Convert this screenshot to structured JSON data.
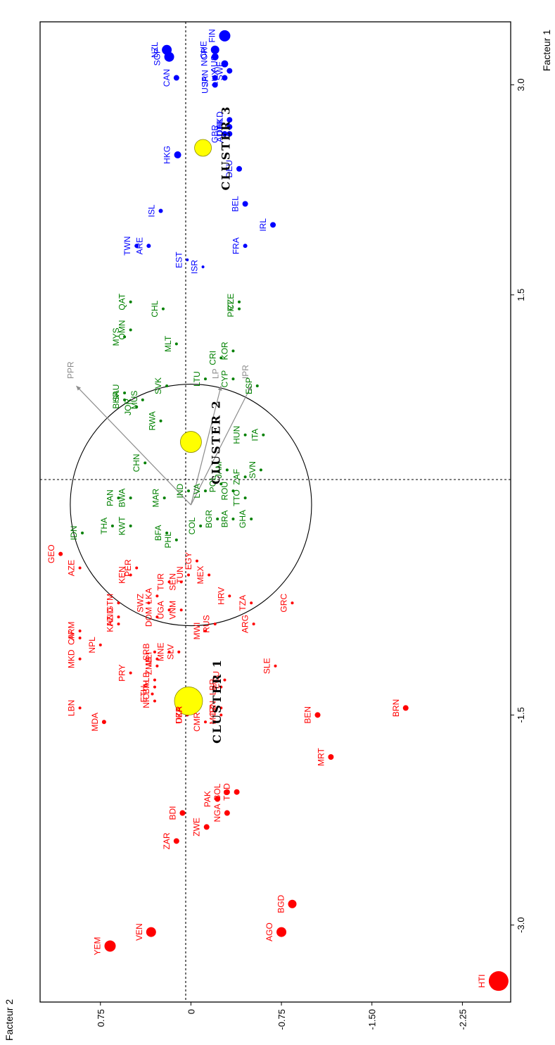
{
  "chart_data": {
    "type": "scatter",
    "xlabel": "Facteur 1",
    "ylabel": "Facteur 2",
    "xlim": [
      -3.55,
      3.45
    ],
    "ylim": [
      -2.65,
      1.25
    ],
    "x_ticks": [
      -3.0,
      -1.5,
      1.5,
      3.0
    ],
    "x_tick_labels": [
      "-3.0",
      "-1.5",
      "1.5",
      "3.0"
    ],
    "y_ticks": [
      0.75,
      0,
      -0.75,
      -1.5,
      -2.25
    ],
    "y_tick_labels": [
      "0.75",
      "0",
      "-0.75",
      "-1.50",
      "-2.25"
    ],
    "colors": {
      "cluster1": "#ff0000",
      "cluster2": "#008000",
      "cluster3": "#0000ff",
      "centroid": "#ffff00",
      "variables": "#8c8c8c"
    },
    "series": [
      {
        "name": "CLUSTER 1",
        "color": "#ff0000",
        "points": [
          {
            "label": "HTI",
            "x": -3.4,
            "y": -2.55,
            "size": 14
          },
          {
            "label": "YEM",
            "x": -3.15,
            "y": 0.67,
            "size": 8
          },
          {
            "label": "VEN",
            "x": -3.05,
            "y": 0.33,
            "size": 7
          },
          {
            "label": "AGO",
            "x": -3.05,
            "y": -0.75,
            "size": 7
          },
          {
            "label": "BGD",
            "x": -2.85,
            "y": -0.84,
            "size": 6
          },
          {
            "label": "ZAR",
            "x": -2.4,
            "y": 0.12,
            "size": 4
          },
          {
            "label": "BDI",
            "x": -2.2,
            "y": 0.07,
            "size": 4
          },
          {
            "label": "ZWE",
            "x": -2.3,
            "y": -0.13,
            "size": 4
          },
          {
            "label": "NGA",
            "x": -2.2,
            "y": -0.3,
            "size": 4
          },
          {
            "label": "PAK",
            "x": -2.1,
            "y": -0.22,
            "size": 4
          },
          {
            "label": "BOL",
            "x": -2.05,
            "y": -0.3,
            "size": 4
          },
          {
            "label": "TCD",
            "x": -2.05,
            "y": -0.38,
            "size": 4
          },
          {
            "label": "MRT",
            "x": -1.8,
            "y": -1.16,
            "size": 4
          },
          {
            "label": "BEN",
            "x": -1.5,
            "y": -1.05,
            "size": 4
          },
          {
            "label": "BRN",
            "x": -1.45,
            "y": -1.78,
            "size": 4
          },
          {
            "label": "MDA",
            "x": -1.55,
            "y": 0.72,
            "size": 3
          },
          {
            "label": "DZA",
            "x": -1.5,
            "y": 0.03,
            "size": 2
          },
          {
            "label": "UKR",
            "x": -1.5,
            "y": 0.03,
            "size": 2
          },
          {
            "label": "CMR",
            "x": -1.55,
            "y": -0.12,
            "size": 2
          },
          {
            "label": "MOZ",
            "x": -1.5,
            "y": -0.25,
            "size": 2
          },
          {
            "label": "IRN",
            "x": -1.45,
            "y": -0.25,
            "size": 2
          },
          {
            "label": "LBN",
            "x": -1.45,
            "y": 0.92,
            "size": 2
          },
          {
            "label": "NIC",
            "x": -1.4,
            "y": 0.3,
            "size": 2
          },
          {
            "label": "ETH",
            "x": -1.35,
            "y": 0.32,
            "size": 2
          },
          {
            "label": "BIH",
            "x": -1.3,
            "y": 0.3,
            "size": 2
          },
          {
            "label": "ALB",
            "x": -1.25,
            "y": 0.3,
            "size": 2
          },
          {
            "label": "MKD",
            "x": -1.1,
            "y": 0.92,
            "size": 2
          },
          {
            "label": "PRY",
            "x": -1.2,
            "y": 0.5,
            "size": 2
          },
          {
            "label": "ZMB",
            "x": -1.15,
            "y": 0.28,
            "size": 2
          },
          {
            "label": "MLI",
            "x": -1.1,
            "y": 0.28,
            "size": 2
          },
          {
            "label": "LBR",
            "x": -1.3,
            "y": -0.25,
            "size": 2
          },
          {
            "label": "ECU",
            "x": -1.25,
            "y": -0.28,
            "size": 2
          },
          {
            "label": "SLE",
            "x": -1.15,
            "y": -0.7,
            "size": 2
          },
          {
            "label": "SRB",
            "x": -1.05,
            "y": 0.3,
            "size": 2
          },
          {
            "label": "MNE",
            "x": -1.05,
            "y": 0.18,
            "size": 2
          },
          {
            "label": "SLV",
            "x": -1.05,
            "y": 0.1,
            "size": 2
          },
          {
            "label": "NPL",
            "x": -1.0,
            "y": 0.75,
            "size": 2
          },
          {
            "label": "CIV",
            "x": -0.95,
            "y": 0.92,
            "size": 2
          },
          {
            "label": "ARM",
            "x": -0.9,
            "y": 0.92,
            "size": 2
          },
          {
            "label": "KAZ",
            "x": -0.85,
            "y": 0.6,
            "size": 2
          },
          {
            "label": "HND",
            "x": -0.8,
            "y": 0.6,
            "size": 2
          },
          {
            "label": "DOM",
            "x": -0.8,
            "y": 0.28,
            "size": 2
          },
          {
            "label": "UGA",
            "x": -0.75,
            "y": 0.18,
            "size": 2
          },
          {
            "label": "VNM",
            "x": -0.75,
            "y": 0.08,
            "size": 2
          },
          {
            "label": "MWI",
            "x": -0.9,
            "y": -0.12,
            "size": 2
          },
          {
            "label": "RUS",
            "x": -0.85,
            "y": -0.2,
            "size": 2
          },
          {
            "label": "ARG",
            "x": -0.85,
            "y": -0.52,
            "size": 2
          },
          {
            "label": "SWZ",
            "x": -0.7,
            "y": 0.35,
            "size": 2
          },
          {
            "label": "LKA",
            "x": -0.65,
            "y": 0.28,
            "size": 2
          },
          {
            "label": "GTM",
            "x": -0.7,
            "y": 0.6,
            "size": 2
          },
          {
            "label": "SEN",
            "x": -0.55,
            "y": 0.08,
            "size": 2
          },
          {
            "label": "TUN",
            "x": -0.5,
            "y": 0.02,
            "size": 2
          },
          {
            "label": "TUR",
            "x": -0.55,
            "y": 0.18,
            "size": 2
          },
          {
            "label": "KEN",
            "x": -0.5,
            "y": 0.5,
            "size": 2
          },
          {
            "label": "PER",
            "x": -0.45,
            "y": 0.45,
            "size": 2
          },
          {
            "label": "HRV",
            "x": -0.65,
            "y": -0.32,
            "size": 2
          },
          {
            "label": "TZA",
            "x": -0.7,
            "y": -0.5,
            "size": 2
          },
          {
            "label": "GRC",
            "x": -0.7,
            "y": -0.84,
            "size": 2
          },
          {
            "label": "MEX",
            "x": -0.5,
            "y": -0.15,
            "size": 2
          },
          {
            "label": "EGY",
            "x": -0.4,
            "y": -0.05,
            "size": 2
          },
          {
            "label": "AZE",
            "x": -0.45,
            "y": 0.92,
            "size": 2
          },
          {
            "label": "GEO",
            "x": -0.35,
            "y": 1.08,
            "size": 3
          }
        ]
      },
      {
        "name": "CLUSTER 2",
        "color": "#008000",
        "points": [
          {
            "label": "IDN",
            "x": -0.2,
            "y": 0.9,
            "size": 2
          },
          {
            "label": "THA",
            "x": -0.15,
            "y": 0.65,
            "size": 2
          },
          {
            "label": "KWT",
            "x": -0.15,
            "y": 0.5,
            "size": 2
          },
          {
            "label": "BFA",
            "x": -0.2,
            "y": 0.2,
            "size": 2
          },
          {
            "label": "PHL",
            "x": -0.25,
            "y": 0.12,
            "size": 2
          },
          {
            "label": "COL",
            "x": -0.15,
            "y": -0.08,
            "size": 2
          },
          {
            "label": "BGR",
            "x": -0.1,
            "y": -0.22,
            "size": 2
          },
          {
            "label": "BRA",
            "x": -0.1,
            "y": -0.35,
            "size": 2
          },
          {
            "label": "GHA",
            "x": -0.1,
            "y": -0.5,
            "size": 2
          },
          {
            "label": "PAN",
            "x": 0.05,
            "y": 0.6,
            "size": 2
          },
          {
            "label": "BWA",
            "x": 0.05,
            "y": 0.5,
            "size": 2
          },
          {
            "label": "MAR",
            "x": 0.05,
            "y": 0.22,
            "size": 2
          },
          {
            "label": "IND",
            "x": 0.1,
            "y": 0.02,
            "size": 2
          },
          {
            "label": "LVA",
            "x": 0.1,
            "y": -0.12,
            "size": 2
          },
          {
            "label": "POL",
            "x": 0.15,
            "y": -0.25,
            "size": 2
          },
          {
            "label": "ROU",
            "x": 0.1,
            "y": -0.35,
            "size": 2
          },
          {
            "label": "TTO",
            "x": 0.05,
            "y": -0.45,
            "size": 2
          },
          {
            "label": "CHN",
            "x": 0.3,
            "y": 0.38,
            "size": 2
          },
          {
            "label": "JAM",
            "x": 0.25,
            "y": -0.3,
            "size": 2
          },
          {
            "label": "ZAF",
            "x": 0.2,
            "y": -0.45,
            "size": 2
          },
          {
            "label": "SVN",
            "x": 0.25,
            "y": -0.58,
            "size": 2
          },
          {
            "label": "HUN",
            "x": 0.5,
            "y": -0.45,
            "size": 2
          },
          {
            "label": "ITA",
            "x": 0.5,
            "y": -0.6,
            "size": 2
          },
          {
            "label": "JOR",
            "x": 0.7,
            "y": 0.45,
            "size": 2
          },
          {
            "label": "BHR",
            "x": 0.75,
            "y": 0.55,
            "size": 2
          },
          {
            "label": "MUS",
            "x": 0.75,
            "y": 0.4,
            "size": 2
          },
          {
            "label": "RWA",
            "x": 0.6,
            "y": 0.25,
            "size": 2
          },
          {
            "label": "SAU",
            "x": 0.8,
            "y": 0.55,
            "size": 2
          },
          {
            "label": "SVK",
            "x": 0.85,
            "y": 0.2,
            "size": 2
          },
          {
            "label": "LTU",
            "x": 0.9,
            "y": -0.12,
            "size": 2
          },
          {
            "label": "CYP",
            "x": 0.9,
            "y": -0.35,
            "size": 2
          },
          {
            "label": "MLT",
            "x": 1.15,
            "y": 0.12,
            "size": 2
          },
          {
            "label": "CRI",
            "x": 1.05,
            "y": -0.25,
            "size": 2
          },
          {
            "label": "KOR",
            "x": 1.1,
            "y": -0.35,
            "size": 2
          },
          {
            "label": "ESP",
            "x": 0.85,
            "y": -0.55,
            "size": 2
          },
          {
            "label": "MYS",
            "x": 1.2,
            "y": 0.55,
            "size": 2
          },
          {
            "label": "OMN",
            "x": 1.25,
            "y": 0.5,
            "size": 2
          },
          {
            "label": "CHL",
            "x": 1.4,
            "y": 0.23,
            "size": 2
          },
          {
            "label": "QAT",
            "x": 1.45,
            "y": 0.5,
            "size": 2
          },
          {
            "label": "PRT",
            "x": 1.4,
            "y": -0.4,
            "size": 2
          },
          {
            "label": "CZE",
            "x": 1.45,
            "y": -0.4,
            "size": 2
          }
        ]
      },
      {
        "name": "CLUSTER 3",
        "color": "#0000ff",
        "points": [
          {
            "label": "EST",
            "x": 1.75,
            "y": 0.03,
            "size": 2
          },
          {
            "label": "ISR",
            "x": 1.7,
            "y": -0.1,
            "size": 2
          },
          {
            "label": "TWN",
            "x": 1.85,
            "y": 0.45,
            "size": 3
          },
          {
            "label": "ARE",
            "x": 1.85,
            "y": 0.35,
            "size": 3
          },
          {
            "label": "FRA",
            "x": 1.85,
            "y": -0.45,
            "size": 3
          },
          {
            "label": "ISL",
            "x": 2.1,
            "y": 0.25,
            "size": 3
          },
          {
            "label": "IRL",
            "x": 2.0,
            "y": -0.68,
            "size": 4
          },
          {
            "label": "BEL",
            "x": 2.15,
            "y": -0.45,
            "size": 4
          },
          {
            "label": "DEU",
            "x": 2.4,
            "y": -0.4,
            "size": 4
          },
          {
            "label": "HKG",
            "x": 2.5,
            "y": 0.11,
            "size": 5
          },
          {
            "label": "GBR",
            "x": 2.65,
            "y": -0.28,
            "size": 4
          },
          {
            "label": "AUT",
            "x": 2.65,
            "y": -0.32,
            "size": 4
          },
          {
            "label": "DNK",
            "x": 2.7,
            "y": -0.32,
            "size": 4
          },
          {
            "label": "NLD",
            "x": 2.75,
            "y": -0.32,
            "size": 4
          },
          {
            "label": "CAN",
            "x": 3.05,
            "y": 0.12,
            "size": 4
          },
          {
            "label": "USA",
            "x": 3.0,
            "y": -0.2,
            "size": 4
          },
          {
            "label": "JPN",
            "x": 3.05,
            "y": -0.2,
            "size": 4
          },
          {
            "label": "LUX",
            "x": 3.05,
            "y": -0.28,
            "size": 4
          },
          {
            "label": "SWE",
            "x": 3.1,
            "y": -0.32,
            "size": 4
          },
          {
            "label": "AUS",
            "x": 3.15,
            "y": -0.28,
            "size": 5
          },
          {
            "label": "NOR",
            "x": 3.2,
            "y": -0.2,
            "size": 5
          },
          {
            "label": "SGP",
            "x": 3.2,
            "y": 0.18,
            "size": 7
          },
          {
            "label": "NZL",
            "x": 3.25,
            "y": 0.2,
            "size": 7
          },
          {
            "label": "CHE",
            "x": 3.25,
            "y": -0.2,
            "size": 6
          },
          {
            "label": "FIN",
            "x": 3.35,
            "y": -0.28,
            "size": 8
          }
        ]
      }
    ],
    "centroids": [
      {
        "label": "CLUSTER 1",
        "x": -1.4,
        "y": 0.02,
        "r": 20
      },
      {
        "label": "CLUSTER 2",
        "x": 0.45,
        "y": 0.0,
        "r": 15
      },
      {
        "label": "CLUSTER 3",
        "x": 2.55,
        "y": -0.1,
        "r": 12
      }
    ],
    "variables": [
      {
        "label": "PPR",
        "x": 0.85,
        "y": 0.95
      },
      {
        "label": "LP",
        "x": 0.85,
        "y": -0.25
      },
      {
        "label": "IPR",
        "x": 0.85,
        "y": -0.5
      }
    ],
    "circle_radius": 1.0,
    "grid": false,
    "legend": "none"
  }
}
